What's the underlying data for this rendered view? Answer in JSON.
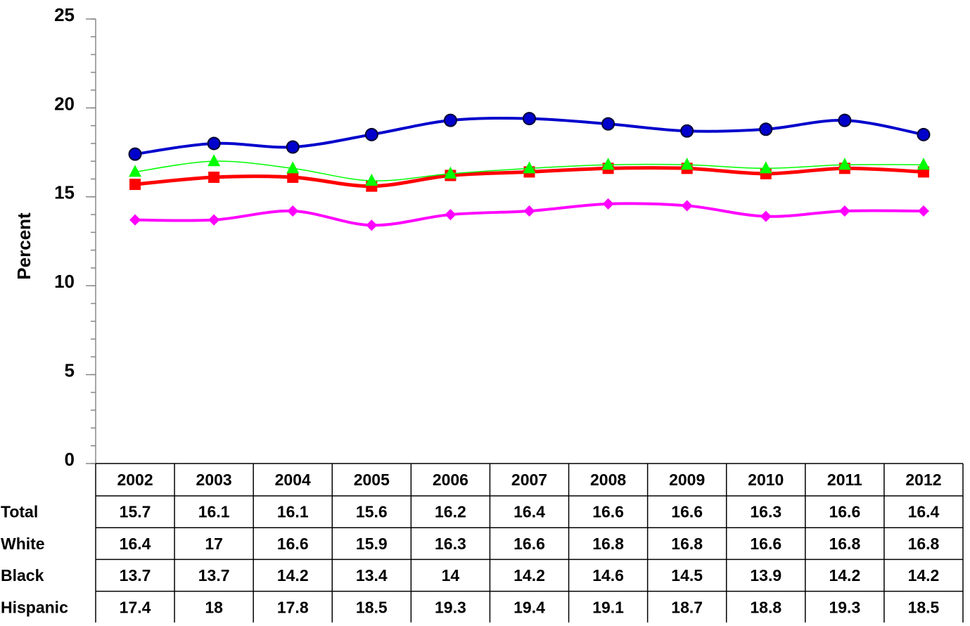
{
  "chart_data": {
    "type": "line",
    "y_label": "Percent",
    "categories": [
      "2002",
      "2003",
      "2004",
      "2005",
      "2006",
      "2007",
      "2008",
      "2009",
      "2010",
      "2011",
      "2012"
    ],
    "series": [
      {
        "name": "Total",
        "color": "#ff0000",
        "marker": "square",
        "line_width": 5,
        "values": [
          15.7,
          16.1,
          16.1,
          15.6,
          16.2,
          16.4,
          16.6,
          16.6,
          16.3,
          16.6,
          16.4
        ]
      },
      {
        "name": "White",
        "color": "#00ff00",
        "marker": "triangle",
        "line_width": 1.5,
        "values": [
          16.4,
          17,
          16.6,
          15.9,
          16.3,
          16.6,
          16.8,
          16.8,
          16.6,
          16.8,
          16.8
        ]
      },
      {
        "name": "Black",
        "color": "#ff00ff",
        "marker": "diamond",
        "line_width": 4,
        "values": [
          13.7,
          13.7,
          14.2,
          13.4,
          14,
          14.2,
          14.6,
          14.5,
          13.9,
          14.2,
          14.2
        ]
      },
      {
        "name": "Hispanic",
        "color": "#0000cc",
        "marker": "circle",
        "line_width": 4,
        "values": [
          17.4,
          18,
          17.8,
          18.5,
          19.3,
          19.4,
          19.1,
          18.7,
          18.8,
          19.3,
          18.5
        ]
      }
    ],
    "ylim": [
      0,
      25
    ],
    "yticks": [
      0,
      5,
      10,
      15,
      20,
      25
    ],
    "y_minor_tick_step": 1,
    "smooth": true,
    "data_table": true
  }
}
